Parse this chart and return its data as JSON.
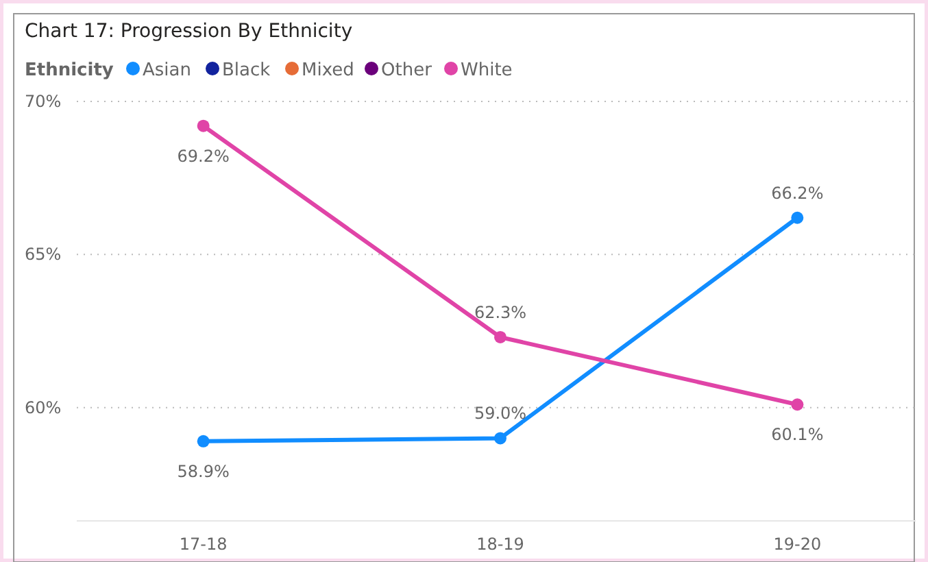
{
  "chart_data": {
    "type": "line",
    "title": "Chart 17: Progression By Ethnicity",
    "legend_title": "Ethnicity",
    "categories": [
      "17-18",
      "18-19",
      "19-20"
    ],
    "series": [
      {
        "name": "Asian",
        "color": "#118dff",
        "values": [
          58.9,
          59.0,
          66.2
        ],
        "value_labels": [
          "58.9%",
          "59.0%",
          "66.2%"
        ]
      },
      {
        "name": "Black",
        "color": "#12239e",
        "values": [
          null,
          null,
          null
        ]
      },
      {
        "name": "Mixed",
        "color": "#e66c37",
        "values": [
          null,
          null,
          null
        ]
      },
      {
        "name": "Other",
        "color": "#6b007b",
        "values": [
          null,
          null,
          null
        ]
      },
      {
        "name": "White",
        "color": "#e044a7",
        "values": [
          69.2,
          62.3,
          60.1
        ],
        "value_labels": [
          "69.2%",
          "62.3%",
          "60.1%"
        ]
      }
    ],
    "ylim": [
      56.3,
      70
    ],
    "yticks": [
      {
        "value": 60,
        "label": "60%"
      },
      {
        "value": 65,
        "label": "65%"
      },
      {
        "value": 70,
        "label": "70%"
      }
    ],
    "grid": "y",
    "legend": "top left",
    "marker": "circle",
    "line_style": "solid"
  }
}
